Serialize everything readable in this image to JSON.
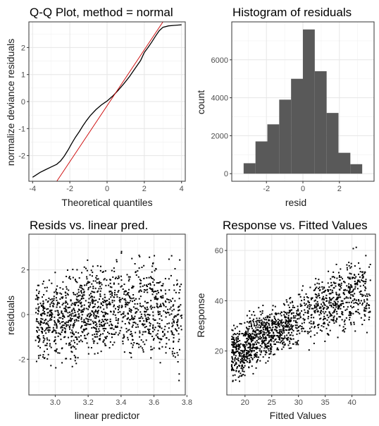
{
  "colors": {
    "panel_border": "#333333",
    "grid_major": "#e6e6e6",
    "grid_minor": "#f2f2f2",
    "points": "#000000",
    "reference_line": "#cc0000",
    "bars": "#595959",
    "axis_text": "#4d4d4d",
    "label_text": "#1a1a1a"
  },
  "chart_data": [
    {
      "type": "line",
      "title": "Q-Q Plot, method = normal",
      "xlabel": "Theoretical quantiles",
      "ylabel": "normalize deviance residuals",
      "xlim": [
        -4.2,
        4.2
      ],
      "ylim": [
        -2.95,
        2.95
      ],
      "xticks": [
        -4,
        -2,
        0,
        2,
        4
      ],
      "yticks": [
        -2,
        -1,
        0,
        1,
        2
      ],
      "grid": true,
      "series": [
        {
          "kind": "sample",
          "x": [
            -4.0,
            -3.6,
            -3.3,
            -3.0,
            -2.7,
            -2.5,
            -2.3,
            -2.1,
            -1.9,
            -1.7,
            -1.5,
            -1.3,
            -1.1,
            -0.9,
            -0.6,
            -0.3,
            0.0,
            0.3,
            0.6,
            0.9,
            1.2,
            1.5,
            1.8,
            2.0,
            2.2,
            2.4,
            2.6,
            2.8,
            3.0,
            3.3,
            3.6,
            4.0
          ],
          "values": [
            -2.8,
            -2.62,
            -2.52,
            -2.42,
            -2.32,
            -2.2,
            -2.02,
            -1.8,
            -1.55,
            -1.32,
            -1.12,
            -0.9,
            -0.7,
            -0.52,
            -0.3,
            -0.12,
            0.02,
            0.2,
            0.42,
            0.66,
            0.92,
            1.22,
            1.52,
            1.82,
            2.0,
            2.2,
            2.42,
            2.62,
            2.75,
            2.8,
            2.82,
            2.84
          ]
        },
        {
          "kind": "reference",
          "x": [
            -2.7,
            3.0
          ],
          "values": [
            -2.95,
            2.95
          ]
        }
      ]
    },
    {
      "type": "bar",
      "title": "Histogram of residuals",
      "xlabel": "resid",
      "ylabel": "count",
      "xlim": [
        -3.9,
        3.9
      ],
      "ylim": [
        -400,
        8000
      ],
      "xticks": [
        -2,
        0,
        2
      ],
      "yticks": [
        0,
        2000,
        4000,
        6000
      ],
      "grid": true,
      "bins": [
        {
          "from": -3.25,
          "to": -2.6,
          "count": 550
        },
        {
          "from": -2.6,
          "to": -1.95,
          "count": 1700
        },
        {
          "from": -1.95,
          "to": -1.3,
          "count": 2600
        },
        {
          "from": -1.3,
          "to": -0.65,
          "count": 3900
        },
        {
          "from": -0.65,
          "to": 0.0,
          "count": 5000
        },
        {
          "from": 0.0,
          "to": 0.65,
          "count": 7600
        },
        {
          "from": 0.65,
          "to": 1.3,
          "count": 5400
        },
        {
          "from": 1.3,
          "to": 1.95,
          "count": 3200
        },
        {
          "from": 1.95,
          "to": 2.6,
          "count": 1100
        },
        {
          "from": 2.6,
          "to": 3.25,
          "count": 500
        }
      ]
    },
    {
      "type": "scatter",
      "title": "Resids vs. linear pred.",
      "xlabel": "linear predictor",
      "ylabel": "residuals",
      "xlim": [
        2.84,
        3.79
      ],
      "ylim": [
        -3.6,
        3.6
      ],
      "xticks": [
        3.0,
        3.2,
        3.4,
        3.6,
        3.8
      ],
      "xtick_labels": [
        "3.0",
        "3.2",
        "3.4",
        "3.6",
        "3.8"
      ],
      "yticks": [
        -2,
        0,
        2
      ],
      "grid": true,
      "clusters": [
        {
          "x_from": 2.88,
          "x_to": 2.95,
          "y_from": -2.7,
          "y_to": 2.1,
          "n": 120
        },
        {
          "x_from": 2.95,
          "x_to": 3.05,
          "y_from": -2.8,
          "y_to": 2.4,
          "n": 160
        },
        {
          "x_from": 3.05,
          "x_to": 3.15,
          "y_from": -2.7,
          "y_to": 2.6,
          "n": 180
        },
        {
          "x_from": 3.15,
          "x_to": 3.25,
          "y_from": -2.5,
          "y_to": 2.8,
          "n": 180
        },
        {
          "x_from": 3.25,
          "x_to": 3.35,
          "y_from": -2.8,
          "y_to": 2.9,
          "n": 170
        },
        {
          "x_from": 3.35,
          "x_to": 3.45,
          "y_from": -2.6,
          "y_to": 3.2,
          "n": 130
        },
        {
          "x_from": 3.45,
          "x_to": 3.55,
          "y_from": -2.8,
          "y_to": 3.4,
          "n": 140
        },
        {
          "x_from": 3.55,
          "x_to": 3.65,
          "y_from": -3.1,
          "y_to": 3.5,
          "n": 150
        },
        {
          "x_from": 3.65,
          "x_to": 3.77,
          "y_from": -3.4,
          "y_to": 3.3,
          "n": 130
        }
      ]
    },
    {
      "type": "scatter",
      "title": "Response vs. Fitted Values",
      "xlabel": "Fitted Values",
      "ylabel": "Response",
      "xlim": [
        16.6,
        44.4
      ],
      "ylim": [
        2.5,
        66.5
      ],
      "xticks": [
        20,
        25,
        30,
        35,
        40
      ],
      "yticks": [
        20,
        40,
        60
      ],
      "grid": true,
      "clusters": [
        {
          "x_from": 17.5,
          "x_to": 20.0,
          "y_from": 4.0,
          "y_to": 34.0,
          "n": 200
        },
        {
          "x_from": 20.0,
          "x_to": 22.5,
          "y_from": 9.0,
          "y_to": 40.0,
          "n": 200
        },
        {
          "x_from": 22.5,
          "x_to": 25.0,
          "y_from": 12.0,
          "y_to": 40.0,
          "n": 170
        },
        {
          "x_from": 25.0,
          "x_to": 27.5,
          "y_from": 16.0,
          "y_to": 41.0,
          "n": 150
        },
        {
          "x_from": 27.5,
          "x_to": 30.0,
          "y_from": 17.0,
          "y_to": 45.0,
          "n": 130
        },
        {
          "x_from": 30.0,
          "x_to": 33.0,
          "y_from": 18.0,
          "y_to": 52.0,
          "n": 90
        },
        {
          "x_from": 33.0,
          "x_to": 36.0,
          "y_from": 20.0,
          "y_to": 55.0,
          "n": 140
        },
        {
          "x_from": 36.0,
          "x_to": 39.0,
          "y_from": 22.0,
          "y_to": 58.0,
          "n": 150
        },
        {
          "x_from": 39.0,
          "x_to": 41.5,
          "y_from": 22.0,
          "y_to": 64.0,
          "n": 120
        },
        {
          "x_from": 41.5,
          "x_to": 43.5,
          "y_from": 21.0,
          "y_to": 63.0,
          "n": 70
        }
      ]
    }
  ]
}
